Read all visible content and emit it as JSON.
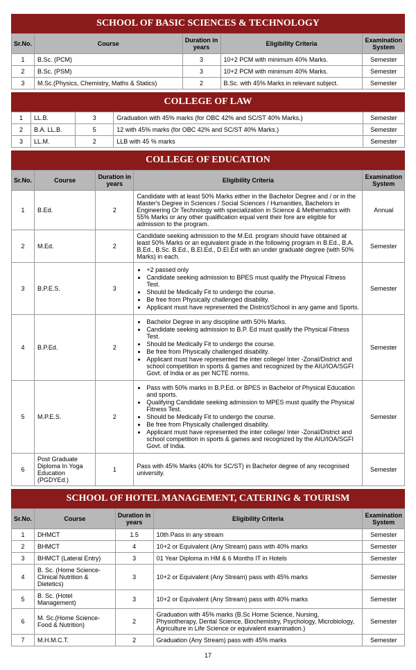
{
  "headers": {
    "sr": "Sr.No.",
    "course": "Course",
    "duration": "Duration in years",
    "elig": "Eligibility Criteria",
    "exam": "Examination System"
  },
  "sections": [
    {
      "title": "SCHOOL OF BASIC SCIENCES & TECHNOLOGY",
      "showHeader": true,
      "rows": [
        {
          "sr": "1",
          "course": "B.Sc. (PCM)",
          "dur": "3",
          "elig": "10+2 PCM with minimum 40% Marks.",
          "exam": "Semester"
        },
        {
          "sr": "2",
          "course": "B.Sc. (PSM)",
          "dur": "3",
          "elig": "10+2 PCM with minimum 40% Marks.",
          "exam": "Semester"
        },
        {
          "sr": "3",
          "course": "M.Sc.(Physics, Chemistry, Maths & Statics)",
          "dur": "2",
          "elig": "B.Sc. with 45% Marks in relevant subject.",
          "exam": "Semester"
        }
      ]
    },
    {
      "title": "COLLEGE OF LAW",
      "showHeader": false,
      "rows": [
        {
          "sr": "1",
          "course": "LL.B.",
          "dur": "3",
          "elig": "Graduation with 45% marks (for OBC 42% and SC/ST 40% Marks.)",
          "exam": "Semester"
        },
        {
          "sr": "2",
          "course": "B.A. LL.B.",
          "dur": "5",
          "elig": "12 with 45% marks (for OBC 42% and SC/ST 40% Marks.)",
          "exam": "Semester"
        },
        {
          "sr": "3",
          "course": "LL.M.",
          "dur": "2",
          "elig": "LLB with 45 % marks",
          "exam": "Semester"
        }
      ]
    },
    {
      "title": "COLLEGE OF EDUCATION",
      "showHeader": true,
      "rows": [
        {
          "sr": "1",
          "course": "B.Ed.",
          "dur": "2",
          "elig": "Candidate with at least 50% Marks either in the Bachelor Degree and / or in the Master's Degree in Sciences / Social Sciences / Humanities, Bachelors in Engineering Or Technology with specialization in Science & Methematics with 55% Marks or any other qualification equal vent their fore are eligible for admission to the program.",
          "exam": "Annual"
        },
        {
          "sr": "2",
          "course": "M.Ed.",
          "dur": "2",
          "elig": "Candidate seeking admission to the M.Ed. program should have obtained at least 50% Marks or an equivalent grade in the following program in B.Ed., B.A. B.Ed., B.Sc. B.Ed., B.El.Ed., D.El.Ed with an under graduate degree (with 50% Marks) in each.",
          "exam": "Semester"
        },
        {
          "sr": "3",
          "course": "B.P.E.S.",
          "dur": "3",
          "eligList": [
            "+2 passed only",
            "Candidate seeking admission to BPES must qualify the Physical Fitness Test.",
            "Should be Medically Fit to undergo the course.",
            "Be free from Physically challenged disability.",
            "Applicant must have represented the District/School in any game and Sports."
          ],
          "exam": "Semester"
        },
        {
          "sr": "4",
          "course": "B.P.Ed.",
          "dur": "2",
          "eligList": [
            "Bachelor Degree in any discipline with 50% Marks.",
            "Candidate seeking admission to B.P. Ed must qualify the Physical Fitness Test.",
            "Should be Medically Fit to undergo the course.",
            "Be free from Physically challenged disability.",
            "Applicant must have represented the inter college/ Inter -Zonal/District and school competition in sports & games and recognized by the AIU/IOA/SGFI Govt. of India or as per NCTE norms."
          ],
          "exam": "Semester"
        },
        {
          "sr": "5",
          "course": "M.P.E.S.",
          "dur": "2",
          "eligList": [
            "Pass with 50% marks in B.P.Ed. or BPES in Bachelor of Physical Education and sports.",
            "Qualifying Candidate seeking admission to MPES must qualify the Physical Fitness Test.",
            "Should be Medically Fit to undergo the course.",
            "Be free from Physically challenged disability.",
            "Applicant must have represented the inter college/ Inter -Zonal/District and school competition in sports & games and recognized by the AIU/IOA/SGFI Govt. of India."
          ],
          "exam": "Semester"
        },
        {
          "sr": "6",
          "course": "Post Graduate Diploma In Yoga Education (PGDYEd.)",
          "dur": "1",
          "elig": "Pass with 45% Marks (40% for SC/ST) in Bachelor degree of any recognised university.",
          "exam": "Semester"
        }
      ]
    },
    {
      "title": "SCHOOL OF HOTEL MANAGEMENT, CATERING & TOURISM",
      "showHeader": true,
      "rows": [
        {
          "sr": "1",
          "course": "DHMCT",
          "dur": "1.5",
          "elig": "10th Pass in any stream",
          "exam": "Semester"
        },
        {
          "sr": "2",
          "course": "BHMCT",
          "dur": "4",
          "elig": "10+2 or Equivalent (Any Stream) pass with 40% marks",
          "exam": "Semester"
        },
        {
          "sr": "3",
          "course": "BHMCT (Lateral Entry)",
          "dur": "3",
          "elig": "01 Year Diploma in HM & 6 Months IT in Hotels",
          "exam": "Semester"
        },
        {
          "sr": "4",
          "course": "B. Sc. (Home Science- Clinical Nutrition & Dietetics)",
          "dur": "3",
          "elig": "10+2 or Equivalent (Any Stream) pass with 45% marks",
          "exam": "Semester"
        },
        {
          "sr": "5",
          "course": "B. Sc. (Hotel Management)",
          "dur": "3",
          "elig": "10+2 or Equivalent (Any Stream) pass with 40% marks",
          "exam": "Semester"
        },
        {
          "sr": "6",
          "course": "M. Sc.(Home Science- Food & Nutrition)",
          "dur": "2",
          "elig": "Graduation with 45% marks (B.Sc Home Science, Nursing, Physiotherapy, Dental Science, Biochemistry, Psychology, Microbiology, Agriculture in Life Science or equivalent examination.)",
          "exam": "Semester"
        },
        {
          "sr": "7",
          "course": "M.H.M.C.T.",
          "dur": "2",
          "elig": "Graduation (Any Stream) pass with 45% marks",
          "exam": "Semester"
        }
      ]
    }
  ],
  "pageNumber": "17"
}
